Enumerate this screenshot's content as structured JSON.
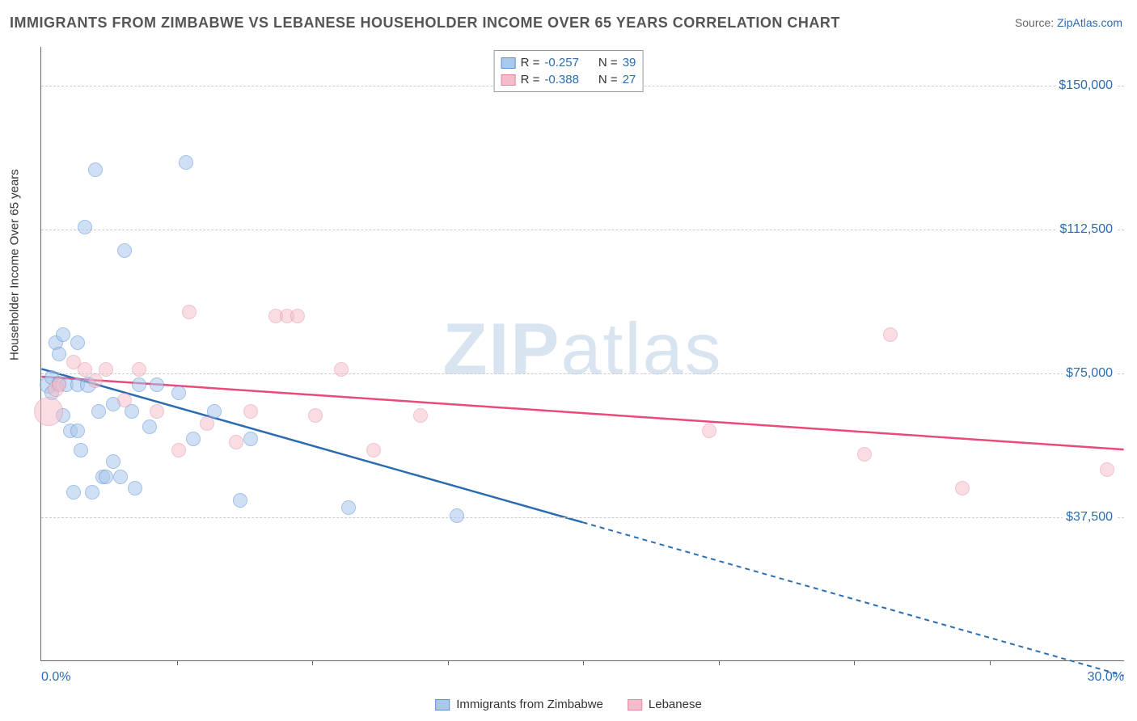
{
  "title": "IMMIGRANTS FROM ZIMBABWE VS LEBANESE HOUSEHOLDER INCOME OVER 65 YEARS CORRELATION CHART",
  "source_label": "Source:",
  "source_name": "ZipAtlas.com",
  "watermark_zip": "ZIP",
  "watermark_atlas": "atlas",
  "yaxis_title": "Householder Income Over 65 years",
  "chart": {
    "type": "scatter",
    "xlim": [
      0,
      30
    ],
    "ylim": [
      0,
      160000
    ],
    "x_tick_step": 3.75,
    "x_min_label": "0.0%",
    "x_max_label": "30.0%",
    "y_ticks": [
      37500,
      75000,
      112500,
      150000
    ],
    "y_tick_labels": [
      "$37,500",
      "$75,000",
      "$112,500",
      "$150,000"
    ],
    "background_color": "#ffffff",
    "grid_color": "#cccccc",
    "axis_color": "#666666",
    "tick_label_color": "#2b6cb0",
    "title_color": "#555555",
    "title_fontsize": 18,
    "label_fontsize": 15
  },
  "series": [
    {
      "name": "Immigrants from Zimbabwe",
      "fill_color": "#a9c8ec",
      "fill_opacity": 0.55,
      "stroke_color": "#5b8fd6",
      "line_color": "#2b6cb0",
      "marker_radius": 9,
      "R": "-0.257",
      "N": "39",
      "trend": {
        "x1": 0,
        "y1": 76000,
        "x2_solid": 15,
        "y2_solid": 36000,
        "x2_dash": 30,
        "y2_dash": -4000
      },
      "points": [
        {
          "x": 0.2,
          "y": 72000,
          "r": 11
        },
        {
          "x": 0.3,
          "y": 70000,
          "r": 9
        },
        {
          "x": 0.3,
          "y": 74000,
          "r": 9
        },
        {
          "x": 0.4,
          "y": 83000,
          "r": 9
        },
        {
          "x": 0.5,
          "y": 80000,
          "r": 9
        },
        {
          "x": 0.5,
          "y": 72500,
          "r": 9
        },
        {
          "x": 0.6,
          "y": 85000,
          "r": 9
        },
        {
          "x": 0.6,
          "y": 64000,
          "r": 9
        },
        {
          "x": 0.7,
          "y": 72000,
          "r": 9
        },
        {
          "x": 0.8,
          "y": 60000,
          "r": 9
        },
        {
          "x": 0.9,
          "y": 44000,
          "r": 9
        },
        {
          "x": 1.0,
          "y": 83000,
          "r": 9
        },
        {
          "x": 1.0,
          "y": 72000,
          "r": 9
        },
        {
          "x": 1.0,
          "y": 60000,
          "r": 9
        },
        {
          "x": 1.1,
          "y": 55000,
          "r": 9
        },
        {
          "x": 1.2,
          "y": 113000,
          "r": 9
        },
        {
          "x": 1.3,
          "y": 72000,
          "r": 10
        },
        {
          "x": 1.4,
          "y": 44000,
          "r": 9
        },
        {
          "x": 1.5,
          "y": 128000,
          "r": 9
        },
        {
          "x": 1.6,
          "y": 65000,
          "r": 9
        },
        {
          "x": 1.7,
          "y": 48000,
          "r": 9
        },
        {
          "x": 1.8,
          "y": 48000,
          "r": 9
        },
        {
          "x": 2.0,
          "y": 52000,
          "r": 9
        },
        {
          "x": 2.0,
          "y": 67000,
          "r": 9
        },
        {
          "x": 2.2,
          "y": 48000,
          "r": 9
        },
        {
          "x": 2.3,
          "y": 107000,
          "r": 9
        },
        {
          "x": 2.5,
          "y": 65000,
          "r": 9
        },
        {
          "x": 2.6,
          "y": 45000,
          "r": 9
        },
        {
          "x": 2.7,
          "y": 72000,
          "r": 9
        },
        {
          "x": 3.0,
          "y": 61000,
          "r": 9
        },
        {
          "x": 3.2,
          "y": 72000,
          "r": 9
        },
        {
          "x": 3.8,
          "y": 70000,
          "r": 9
        },
        {
          "x": 4.0,
          "y": 130000,
          "r": 9
        },
        {
          "x": 4.2,
          "y": 58000,
          "r": 9
        },
        {
          "x": 4.8,
          "y": 65000,
          "r": 9
        },
        {
          "x": 5.5,
          "y": 42000,
          "r": 9
        },
        {
          "x": 5.8,
          "y": 58000,
          "r": 9
        },
        {
          "x": 8.5,
          "y": 40000,
          "r": 9
        },
        {
          "x": 11.5,
          "y": 38000,
          "r": 9
        }
      ]
    },
    {
      "name": "Lebanese",
      "fill_color": "#f4bcc8",
      "fill_opacity": 0.5,
      "stroke_color": "#e08aa0",
      "line_color": "#e84a7a",
      "marker_radius": 9,
      "R": "-0.388",
      "N": "27",
      "trend": {
        "x1": 0,
        "y1": 74000,
        "x2_solid": 30,
        "y2_solid": 55000,
        "x2_dash": 30,
        "y2_dash": 55000
      },
      "points": [
        {
          "x": 0.2,
          "y": 65000,
          "r": 18
        },
        {
          "x": 0.4,
          "y": 71000,
          "r": 10
        },
        {
          "x": 0.5,
          "y": 72000,
          "r": 9
        },
        {
          "x": 0.9,
          "y": 78000,
          "r": 9
        },
        {
          "x": 1.2,
          "y": 76000,
          "r": 9
        },
        {
          "x": 1.5,
          "y": 73000,
          "r": 9
        },
        {
          "x": 1.8,
          "y": 76000,
          "r": 9
        },
        {
          "x": 2.3,
          "y": 68000,
          "r": 9
        },
        {
          "x": 2.7,
          "y": 76000,
          "r": 9
        },
        {
          "x": 3.2,
          "y": 65000,
          "r": 9
        },
        {
          "x": 3.8,
          "y": 55000,
          "r": 9
        },
        {
          "x": 4.1,
          "y": 91000,
          "r": 9
        },
        {
          "x": 4.6,
          "y": 62000,
          "r": 9
        },
        {
          "x": 5.4,
          "y": 57000,
          "r": 9
        },
        {
          "x": 5.8,
          "y": 65000,
          "r": 9
        },
        {
          "x": 6.5,
          "y": 90000,
          "r": 9
        },
        {
          "x": 6.8,
          "y": 90000,
          "r": 9
        },
        {
          "x": 7.1,
          "y": 90000,
          "r": 9
        },
        {
          "x": 7.6,
          "y": 64000,
          "r": 9
        },
        {
          "x": 8.3,
          "y": 76000,
          "r": 9
        },
        {
          "x": 9.2,
          "y": 55000,
          "r": 9
        },
        {
          "x": 10.5,
          "y": 64000,
          "r": 9
        },
        {
          "x": 18.5,
          "y": 60000,
          "r": 9
        },
        {
          "x": 22.8,
          "y": 54000,
          "r": 9
        },
        {
          "x": 23.5,
          "y": 85000,
          "r": 9
        },
        {
          "x": 25.5,
          "y": 45000,
          "r": 9
        },
        {
          "x": 29.5,
          "y": 50000,
          "r": 9
        }
      ]
    }
  ],
  "stats_box": {
    "R_label": "R =",
    "N_label": "N ="
  }
}
